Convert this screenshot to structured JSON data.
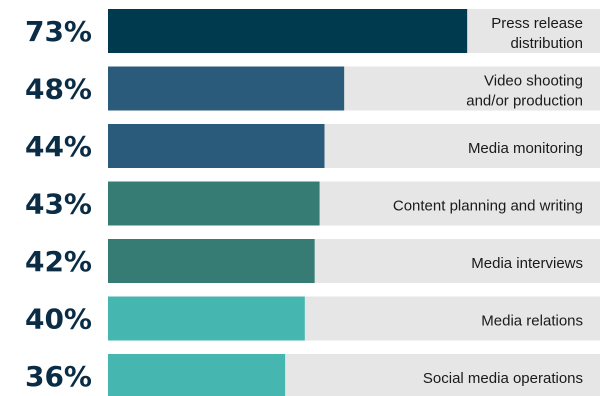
{
  "chart_data": {
    "type": "bar",
    "orientation": "horizontal",
    "title": "",
    "xlabel": "",
    "ylabel": "",
    "xlim": [
      0,
      100
    ],
    "grid": false,
    "legend": "none",
    "categories": [
      "Press release distribution",
      "Video shooting and/or production",
      "Media monitoring",
      "Content planning and writing",
      "Media interviews",
      "Media relations",
      "Social media operations"
    ],
    "category_lines": [
      [
        "Press release",
        "distribution"
      ],
      [
        "Video shooting",
        "and/or production"
      ],
      [
        "Media monitoring"
      ],
      [
        "Content planning and writing"
      ],
      [
        "Media interviews"
      ],
      [
        "Media relations"
      ],
      [
        "Social media operations"
      ]
    ],
    "values": [
      73,
      48,
      44,
      43,
      42,
      40,
      36
    ],
    "value_labels": [
      "73%",
      "48%",
      "44%",
      "43%",
      "42%",
      "40%",
      "36%"
    ],
    "bar_colors": [
      "#003a4e",
      "#2b5b7a",
      "#2b5b7a",
      "#377c74",
      "#377c74",
      "#46b6b1",
      "#46b6b1"
    ],
    "track_color": "#e6e6e6",
    "value_label_color": "#0b2c45",
    "category_label_color": "#1a1a1a"
  }
}
